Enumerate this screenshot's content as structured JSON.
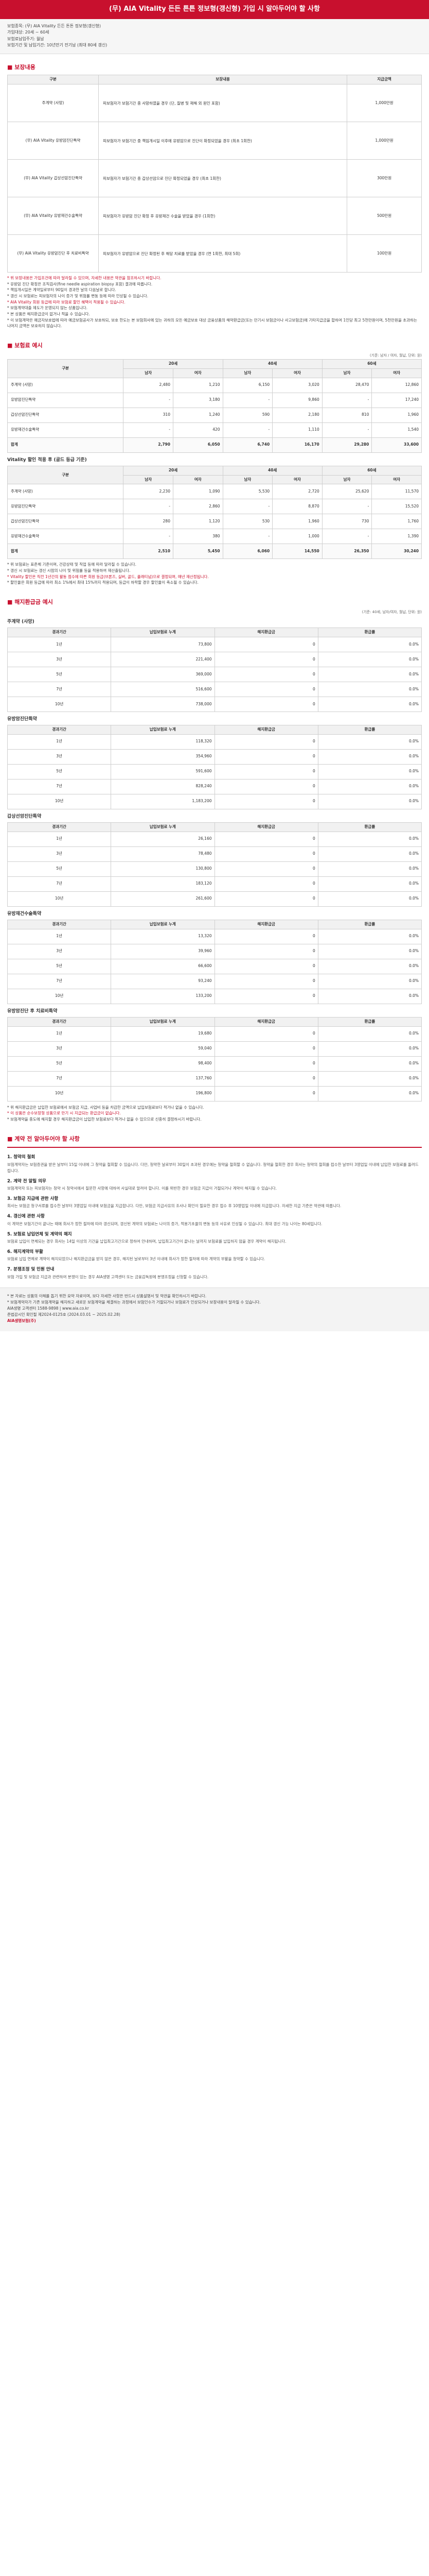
{
  "banner": {
    "title": "(무) AIA Vitality 든든 튼튼 정보형(갱신형) 가입 시 알아두어야 할 사항"
  },
  "intro": {
    "lines": [
      "보험종목: (무) AIA Vitality 든든 튼튼 정보형(갱신형)",
      "가입대상: 20세 ~ 60세",
      "보험료납입주기: 월납",
      "보험기간 및 납입기간: 10년만기 전기납 (최대 80세 갱신)"
    ]
  },
  "product_section": {
    "title": "■ 보장내용",
    "headers": [
      "구분",
      "보장내용",
      "지급금액"
    ],
    "rows": [
      {
        "name": "주계약 (사망)",
        "desc": "피보험자가 보험기간 중 사망하였을 경우 (단, 질병 및 재해 외 원인 포함)",
        "amount": "1,000만원"
      },
      {
        "name": "(무) AIA Vitality 유방암진단특약",
        "desc": "피보험자가 보험기간 중 책임개시일 이후에 유방암으로 진단이 확정되었을 경우 (최초 1회한)",
        "amount": "1,000만원"
      },
      {
        "name": "(무) AIA Vitality 갑상선암진단특약",
        "desc": "피보험자가 보험기간 중 갑상선암으로 진단 확정되었을 경우 (최초 1회한)",
        "amount": "300만원"
      },
      {
        "name": "(무) AIA Vitality 유방재건수술특약",
        "desc": "피보험자가 유방암 진단 확정 후 유방재건 수술을 받았을 경우 (1회한)",
        "amount": "500만원"
      },
      {
        "name": "(무) AIA Vitality 유방암진단 후 치료비특약",
        "desc": "피보험자가 유방암으로 진단 확정된 후 해당 치료를 받았을 경우 (연 1회한, 최대 5회)",
        "amount": "100만원"
      }
    ]
  },
  "product_notes": {
    "lines": [
      "* 위 보장내용은 가입조건에 따라 달라질 수 있으며, 자세한 내용은 약관을 참조하시기 바랍니다.",
      "* 유방암 진단 확정은 조직검사(fine needle aspiration biopsy 포함) 결과에 따릅니다.",
      "* 책임개시일은 계약일로부터 90일이 경과한 날의 다음날로 합니다.",
      "* 갱신 시 보험료는 피보험자의 나이 증가 및 위험률 변동 등에 따라 인상될 수 있습니다.",
      "* AIA Vitality 회원 등급에 따라 보험료 할인 혜택이 적용될 수 있습니다.",
      "* 보험계약대출 제도가 운영되지 않는 상품입니다.",
      "* 본 상품은 해지환급금이 없거나 적을 수 있습니다.",
      "* 이 보험계약은 예금자보호법에 따라 예금보험공사가 보호하되, 보호 한도는 본 보험회사에 있는 귀하의 모든 예금보호 대상 금융상품의 해약환급금(또는 만기시 보험금이나 사고보험금)에 기타지급금을 합하여 1인당 최고 5천만원이며, 5천만원을 초과하는 나머지 금액은 보호하지 않습니다."
    ]
  },
  "premium_section": {
    "title": "■ 보험료 예시",
    "unit": "(기준: 남자 / 여자, 월납, 단위: 원)",
    "age_headers": [
      "구분",
      "20세",
      "40세",
      "60세"
    ],
    "sub_headers": [
      "남자",
      "여자",
      "남자",
      "여자",
      "남자",
      "여자"
    ],
    "rows_a": [
      {
        "name": "주계약 (사망)",
        "vals": [
          "2,480",
          "1,210",
          "6,150",
          "3,020",
          "28,470",
          "12,860"
        ]
      },
      {
        "name": "유방암진단특약",
        "vals": [
          "-",
          "3,180",
          "-",
          "9,860",
          "-",
          "17,240"
        ]
      },
      {
        "name": "갑상선암진단특약",
        "vals": [
          "310",
          "1,240",
          "590",
          "2,180",
          "810",
          "1,960"
        ]
      },
      {
        "name": "유방재건수술특약",
        "vals": [
          "-",
          "420",
          "-",
          "1,110",
          "-",
          "1,540"
        ]
      },
      {
        "name": "합계",
        "vals": [
          "2,790",
          "6,050",
          "6,740",
          "16,170",
          "29,280",
          "33,600"
        ]
      }
    ],
    "caption_b": "Vitality 할인 적용 후 (골드 등급 기준)",
    "rows_b": [
      {
        "name": "주계약 (사망)",
        "vals": [
          "2,230",
          "1,090",
          "5,530",
          "2,720",
          "25,620",
          "11,570"
        ]
      },
      {
        "name": "유방암진단특약",
        "vals": [
          "-",
          "2,860",
          "-",
          "8,870",
          "-",
          "15,520"
        ]
      },
      {
        "name": "갑상선암진단특약",
        "vals": [
          "280",
          "1,120",
          "530",
          "1,960",
          "730",
          "1,760"
        ]
      },
      {
        "name": "유방재건수술특약",
        "vals": [
          "-",
          "380",
          "-",
          "1,000",
          "-",
          "1,390"
        ]
      },
      {
        "name": "합계",
        "vals": [
          "2,510",
          "5,450",
          "6,060",
          "14,550",
          "26,350",
          "30,240"
        ]
      }
    ]
  },
  "premium_notes": {
    "lines": [
      "* 위 보험료는 표준체 기준이며, 건강상태 및 직업 등에 따라 달라질 수 있습니다.",
      "* 갱신 시 보험료는 갱신 시점의 나이 및 위험률 등을 적용하여 재산출됩니다.",
      "* Vitality 할인은 직전 1년간의 활동 점수에 따른 회원 등급(브론즈, 실버, 골드, 플래티넘)으로 결정되며, 매년 재산정됩니다.",
      "* 할인율은 회원 등급에 따라 최소 1%에서 최대 15%까지 적용되며, 등급이 하락할 경우 할인율이 축소될 수 있습니다."
    ]
  },
  "refund_section": {
    "title": "■ 해지환급금 예시",
    "unit": "(기준: 40세, 남자/여자, 월납, 단위: 원)",
    "headers": [
      "경과기간",
      "납입보험료 누계",
      "해지환급금",
      "환급률"
    ],
    "groups": [
      {
        "caption": "주계약 (사망)",
        "rows": [
          {
            "period": "1년",
            "vals": [
              "73,800",
              "0",
              "0.0%"
            ]
          },
          {
            "period": "3년",
            "vals": [
              "221,400",
              "0",
              "0.0%"
            ]
          },
          {
            "period": "5년",
            "vals": [
              "369,000",
              "0",
              "0.0%"
            ]
          },
          {
            "period": "7년",
            "vals": [
              "516,600",
              "0",
              "0.0%"
            ]
          },
          {
            "period": "10년",
            "vals": [
              "738,000",
              "0",
              "0.0%"
            ]
          }
        ]
      },
      {
        "caption": "유방암진단특약",
        "rows": [
          {
            "period": "1년",
            "vals": [
              "118,320",
              "0",
              "0.0%"
            ]
          },
          {
            "period": "3년",
            "vals": [
              "354,960",
              "0",
              "0.0%"
            ]
          },
          {
            "period": "5년",
            "vals": [
              "591,600",
              "0",
              "0.0%"
            ]
          },
          {
            "period": "7년",
            "vals": [
              "828,240",
              "0",
              "0.0%"
            ]
          },
          {
            "period": "10년",
            "vals": [
              "1,183,200",
              "0",
              "0.0%"
            ]
          }
        ]
      },
      {
        "caption": "갑상선암진단특약",
        "rows": [
          {
            "period": "1년",
            "vals": [
              "26,160",
              "0",
              "0.0%"
            ]
          },
          {
            "period": "3년",
            "vals": [
              "78,480",
              "0",
              "0.0%"
            ]
          },
          {
            "period": "5년",
            "vals": [
              "130,800",
              "0",
              "0.0%"
            ]
          },
          {
            "period": "7년",
            "vals": [
              "183,120",
              "0",
              "0.0%"
            ]
          },
          {
            "period": "10년",
            "vals": [
              "261,600",
              "0",
              "0.0%"
            ]
          }
        ]
      },
      {
        "caption": "유방재건수술특약",
        "rows": [
          {
            "period": "1년",
            "vals": [
              "13,320",
              "0",
              "0.0%"
            ]
          },
          {
            "period": "3년",
            "vals": [
              "39,960",
              "0",
              "0.0%"
            ]
          },
          {
            "period": "5년",
            "vals": [
              "66,600",
              "0",
              "0.0%"
            ]
          },
          {
            "period": "7년",
            "vals": [
              "93,240",
              "0",
              "0.0%"
            ]
          },
          {
            "period": "10년",
            "vals": [
              "133,200",
              "0",
              "0.0%"
            ]
          }
        ]
      },
      {
        "caption": "유방암진단 후 치료비특약",
        "rows": [
          {
            "period": "1년",
            "vals": [
              "19,680",
              "0",
              "0.0%"
            ]
          },
          {
            "period": "3년",
            "vals": [
              "59,040",
              "0",
              "0.0%"
            ]
          },
          {
            "period": "5년",
            "vals": [
              "98,400",
              "0",
              "0.0%"
            ]
          },
          {
            "period": "7년",
            "vals": [
              "137,760",
              "0",
              "0.0%"
            ]
          },
          {
            "period": "10년",
            "vals": [
              "196,800",
              "0",
              "0.0%"
            ]
          }
        ]
      }
    ]
  },
  "refund_notes": {
    "lines": [
      "* 위 해지환급금은 납입한 보험료에서 보험금 지급, 사업비 등을 차감한 금액으로 납입보험료보다 적거나 없을 수 있습니다.",
      "* 이 상품은 순수보장형 상품으로 만기 시 지급되는 환급금이 없습니다.",
      "* 보험계약을 중도에 해지할 경우 해지환급금이 납입한 보험료보다 적거나 없을 수 있으므로 신중히 결정하시기 바랍니다."
    ]
  },
  "caution_section": {
    "title": "■ 계약 전 알아두어야 할 사항",
    "items": [
      {
        "head": "1. 청약의 철회",
        "body": "보험계약자는 보험증권을 받은 날부터 15일 이내에 그 청약을 철회할 수 있습니다. 다만, 청약한 날로부터 30일이 초과된 경우에는 청약을 철회할 수 없습니다. 청약을 철회한 경우 회사는 청약의 철회를 접수한 날부터 3영업일 이내에 납입한 보험료를 돌려드립니다."
      },
      {
        "head": "2. 계약 전 알릴 의무",
        "body": "보험계약자 또는 피보험자는 청약 시 청약서에서 질문한 사항에 대하여 사실대로 알려야 합니다. 이를 위반한 경우 보험금 지급이 거절되거나 계약이 해지될 수 있습니다."
      },
      {
        "head": "3. 보험금 지급에 관한 사항",
        "body": "회사는 보험금 청구서류를 접수한 날부터 3영업일 이내에 보험금을 지급합니다. 다만, 보험금 지급사유의 조사나 확인이 필요한 경우 접수 후 10영업일 이내에 지급합니다. 자세한 지급 기준은 약관에 따릅니다."
      },
      {
        "head": "4. 갱신에 관한 사항",
        "body": "이 계약은 보험기간이 끝나는 때에 회사가 정한 절차에 따라 갱신되며, 갱신된 계약의 보험료는 나이의 증가, 적용기초율의 변동 등의 사유로 인상될 수 있습니다. 최대 갱신 가능 나이는 80세입니다."
      },
      {
        "head": "5. 보험료 납입연체 및 계약의 해지",
        "body": "보험료 납입이 연체되는 경우 회사는 14일 이상의 기간을 납입최고기간으로 정하여 안내하며, 납입최고기간이 끝나는 날까지 보험료를 납입하지 않을 경우 계약이 해지됩니다."
      },
      {
        "head": "6. 해지계약의 부활",
        "body": "보험료 납입 연체로 계약이 해지되었으나 해지환급금을 받지 않은 경우, 해지된 날로부터 3년 이내에 회사가 정한 절차에 따라 계약의 부활을 청약할 수 있습니다."
      },
      {
        "head": "7. 분쟁조정 및 민원 안내",
        "body": "보험 가입 및 보험금 지급과 관련하여 분쟁이 있는 경우 AIA생명 고객센터 또는 금융감독원에 분쟁조정을 신청할 수 있습니다."
      }
    ]
  },
  "footer": {
    "lines": [
      "* 본 자료는 상품의 이해를 돕기 위한 요약 자료이며, 보다 자세한 사항은 반드시 상품설명서 및 약관을 확인하시기 바랍니다.",
      "* 보험계약자가 기존 보험계약을 해지하고 새로운 보험계약을 체결하는 과정에서 보험인수가 거절되거나 보험료가 인상되거나 보장내용이 달라질 수 있습니다.",
      "AIA생명 고객센터 1588-9898  |  www.aia.co.kr",
      "준법감시인 확인필 제2024-0125호 (2024.03.01 ~ 2025.02.28)"
    ],
    "emphasis": "AIA생명보험(주)"
  }
}
